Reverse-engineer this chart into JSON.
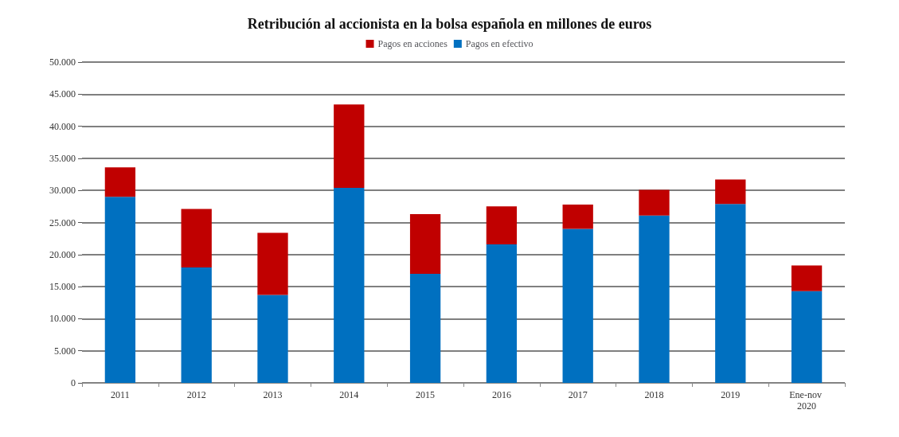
{
  "chart_data": {
    "type": "bar",
    "title": "Retribución al accionista en la bolsa española en millones de euros",
    "categories": [
      "2011",
      "2012",
      "2013",
      "2014",
      "2015",
      "2016",
      "2017",
      "2018",
      "2019",
      "Ene-nov 2020"
    ],
    "stacked": true,
    "series": [
      {
        "name": "Pagos en efectivo",
        "color": "#0070c0",
        "values": [
          29000,
          18000,
          13700,
          30400,
          17000,
          21600,
          24000,
          26100,
          27900,
          14300
        ]
      },
      {
        "name": "Pagos en acciones",
        "color": "#c00000",
        "values": [
          4600,
          9100,
          9700,
          13000,
          9300,
          5900,
          3800,
          4000,
          3800,
          4000
        ]
      }
    ],
    "ylim": [
      0,
      50000
    ],
    "yticks": [
      {
        "value": 0,
        "label": "0"
      },
      {
        "value": 5000,
        "label": "5.000"
      },
      {
        "value": 10000,
        "label": "10.000"
      },
      {
        "value": 15000,
        "label": "15.000"
      },
      {
        "value": 20000,
        "label": "20.000"
      },
      {
        "value": 25000,
        "label": "25.000"
      },
      {
        "value": 30000,
        "label": "30.000"
      },
      {
        "value": 35000,
        "label": "35.000"
      },
      {
        "value": 40000,
        "label": "40.000"
      },
      {
        "value": 45000,
        "label": "45.000"
      },
      {
        "value": 50000,
        "label": "50.000"
      }
    ],
    "grid": "y",
    "legend": "top"
  }
}
